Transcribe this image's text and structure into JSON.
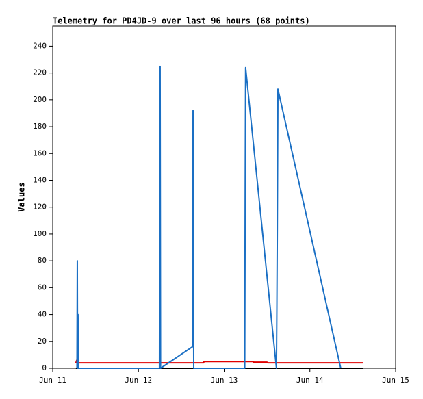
{
  "chart_data": {
    "type": "line",
    "title": "Telemetry for PD4JD-9 over last 96 hours (68 points)",
    "y_label": "Values",
    "xlim": [
      11,
      15
    ],
    "xticks": [
      {
        "value": 11,
        "label": "Jun 11"
      },
      {
        "value": 12,
        "label": "Jun 12"
      },
      {
        "value": 13,
        "label": "Jun 13"
      },
      {
        "value": 14,
        "label": "Jun 14"
      },
      {
        "value": 15,
        "label": "Jun 15"
      }
    ],
    "ylim": [
      0,
      255
    ],
    "yticks": [
      0,
      20,
      40,
      60,
      80,
      100,
      120,
      140,
      160,
      180,
      200,
      220,
      240
    ],
    "grid": false,
    "series": [
      {
        "color": "#000000",
        "x": [
          11.27,
          14.62
        ],
        "values": [
          0,
          0
        ]
      },
      {
        "color": "#e00000",
        "x": [
          11.27,
          11.28,
          11.29,
          12.76,
          12.765,
          13.34,
          13.345,
          13.5,
          13.51,
          14.62
        ],
        "values": [
          4,
          6,
          4,
          4,
          5,
          5,
          4.5,
          4.5,
          4,
          4
        ]
      },
      {
        "color": "#1a6fc4",
        "x": [
          11.283,
          11.287,
          11.29,
          11.295,
          11.3,
          12.245,
          12.248,
          12.253,
          12.258,
          12.63,
          12.633,
          12.637,
          12.64,
          12.645,
          13.24,
          13.245,
          13.25,
          13.61,
          13.615,
          13.62,
          13.627,
          14.36
        ],
        "values": [
          0,
          80,
          0,
          40,
          0,
          0,
          160,
          225,
          0,
          16,
          32,
          192,
          97,
          0,
          0,
          128,
          224,
          0,
          48,
          104,
          208,
          0
        ]
      }
    ]
  }
}
